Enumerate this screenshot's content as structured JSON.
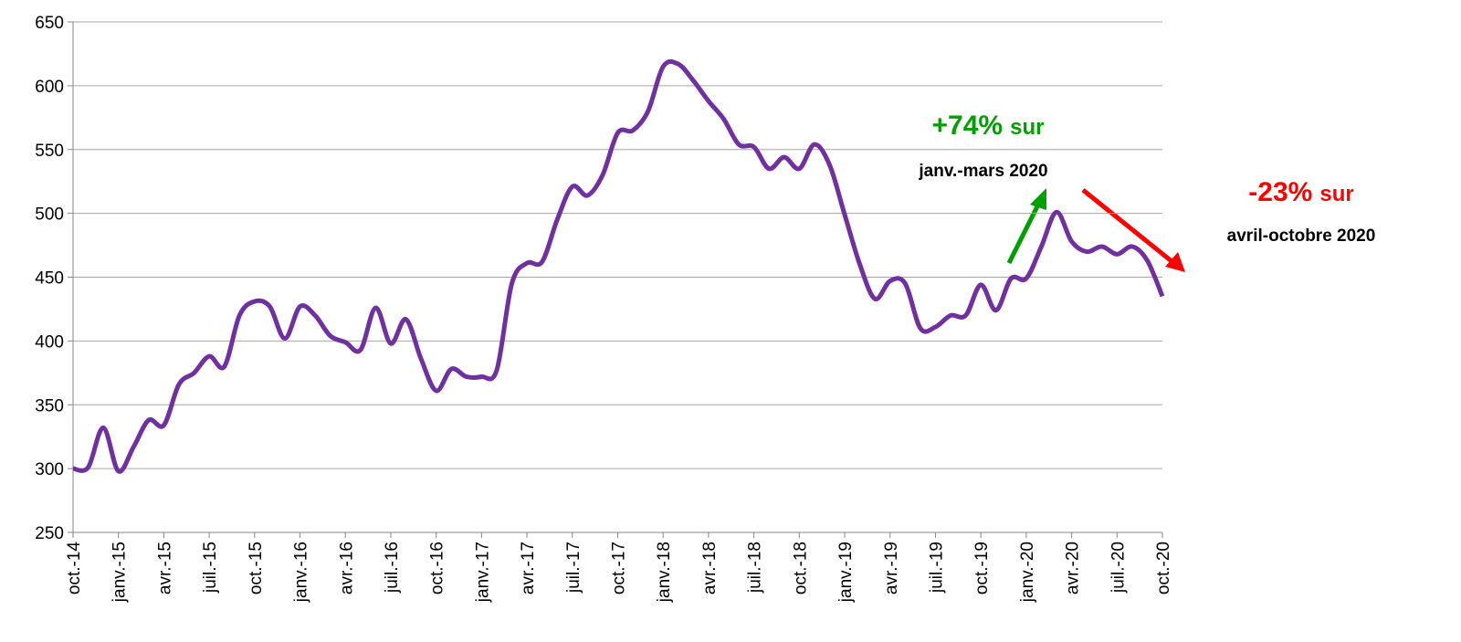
{
  "chart_data": {
    "type": "line",
    "categories": [
      "oct.-14",
      null,
      null,
      "janv.-15",
      null,
      null,
      "avr.-15",
      null,
      null,
      "juil.-15",
      null,
      null,
      "oct.-15",
      null,
      null,
      "janv.-16",
      null,
      null,
      "avr.-16",
      null,
      null,
      "juil.-16",
      null,
      null,
      "oct.-16",
      null,
      null,
      "janv.-17",
      null,
      null,
      "avr.-17",
      null,
      null,
      "juil.-17",
      null,
      null,
      "oct.-17",
      null,
      null,
      "janv.-18",
      null,
      null,
      "avr.-18",
      null,
      null,
      "juil.-18",
      null,
      null,
      "oct.-18",
      null,
      null,
      "janv.-19",
      null,
      null,
      "avr.-19",
      null,
      null,
      "juil.-19",
      null,
      null,
      "oct.-19",
      null,
      null,
      "janv.-20",
      null,
      null,
      "avr.-20",
      null,
      null,
      "juil.-20",
      null,
      null,
      "oct.-20"
    ],
    "series": [
      {
        "color": "#7030a0",
        "values": [
          300,
          301,
          332,
          298,
          317,
          338,
          334,
          366,
          375,
          388,
          380,
          420,
          431,
          427,
          402,
          427,
          420,
          404,
          399,
          393,
          426,
          398,
          417,
          386,
          361,
          378,
          372,
          372,
          377,
          445,
          461,
          462,
          495,
          521,
          514,
          530,
          563,
          565,
          580,
          615,
          617,
          604,
          588,
          574,
          554,
          552,
          535,
          544,
          535,
          554,
          538,
          499,
          460,
          433,
          447,
          445,
          410,
          411,
          420,
          420,
          444,
          424,
          449,
          449,
          474,
          501,
          478,
          470,
          474,
          468,
          474,
          463,
          435
        ]
      }
    ],
    "ylim": [
      250,
      650
    ],
    "yticks": [
      250,
      300,
      350,
      400,
      450,
      500,
      550,
      600,
      650
    ],
    "grid": true,
    "annotations": [
      {
        "emph": "+74%",
        "rest": "sur",
        "line2": "janv.-mars 2020",
        "color": "#00a000"
      },
      {
        "emph": "-23%",
        "rest": "sur",
        "line2": "avril-octobre 2020",
        "color": "#ff0000"
      }
    ]
  }
}
